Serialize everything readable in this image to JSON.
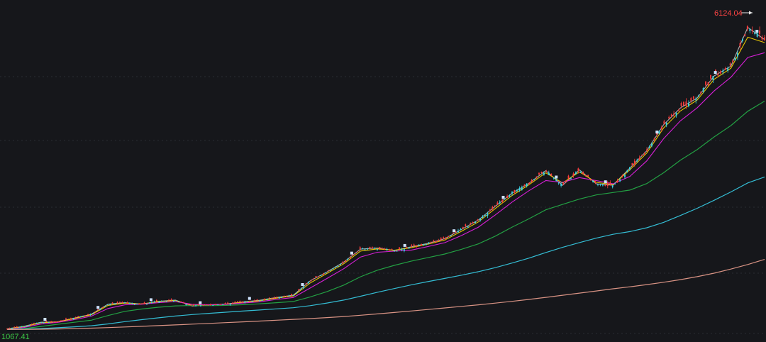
{
  "chart_data": {
    "type": "candlestick",
    "price_labels": {
      "high": "6124.04",
      "low": "1067.41"
    },
    "high_value": 6124.04,
    "low_value": 1067.41,
    "ylim": [
      1000,
      6250
    ],
    "grid": true,
    "colors": {
      "background": "#16171b",
      "grid": "#2b2d33",
      "up": "#ff3b3b",
      "down": "#35d6e8",
      "high_label": "#ff4444",
      "low_label": "#3cc846",
      "marker": "#cfe3ff"
    },
    "moving_averages": [
      {
        "color": "#ffffff",
        "values": [
          1078,
          1120,
          1188,
          1196,
          1258,
          1322,
          1492,
          1515,
          1492,
          1538,
          1560,
          1458,
          1478,
          1493,
          1528,
          1556,
          1602,
          1640,
          1880,
          2030,
          2195,
          2412,
          2430,
          2388,
          2450,
          2508,
          2587,
          2742,
          2900,
          3128,
          3350,
          3515,
          3725,
          3480,
          3740,
          3505,
          3482,
          3770,
          4058,
          4495,
          4775,
          4943,
          5310,
          5475,
          6124,
          5920
        ]
      },
      {
        "color": "#f2d000",
        "values": [
          1076,
          1114,
          1178,
          1194,
          1250,
          1312,
          1470,
          1508,
          1494,
          1532,
          1552,
          1470,
          1480,
          1491,
          1522,
          1548,
          1592,
          1628,
          1845,
          2005,
          2168,
          2380,
          2416,
          2393,
          2436,
          2496,
          2566,
          2712,
          2868,
          3092,
          3310,
          3490,
          3690,
          3520,
          3705,
          3530,
          3492,
          3740,
          4020,
          4440,
          4725,
          4910,
          5255,
          5440,
          5960,
          5870
        ]
      },
      {
        "color": "#e020e0",
        "values": [
          1072,
          1100,
          1158,
          1186,
          1232,
          1290,
          1418,
          1480,
          1490,
          1515,
          1535,
          1488,
          1480,
          1488,
          1510,
          1530,
          1570,
          1602,
          1760,
          1920,
          2085,
          2280,
          2360,
          2378,
          2395,
          2455,
          2520,
          2640,
          2780,
          2985,
          3200,
          3390,
          3560,
          3530,
          3610,
          3560,
          3505,
          3630,
          3890,
          4260,
          4560,
          4780,
          5060,
          5290,
          5620,
          5700
        ]
      },
      {
        "color": "#24a846",
        "values": [
          1070,
          1082,
          1118,
          1155,
          1188,
          1222,
          1300,
          1370,
          1410,
          1440,
          1462,
          1468,
          1466,
          1470,
          1482,
          1497,
          1515,
          1536,
          1610,
          1700,
          1810,
          1950,
          2060,
          2140,
          2210,
          2270,
          2330,
          2410,
          2500,
          2630,
          2780,
          2920,
          3070,
          3160,
          3250,
          3320,
          3360,
          3400,
          3510,
          3690,
          3900,
          4080,
          4290,
          4480,
          4720,
          4890
        ]
      },
      {
        "color": "#36c6de",
        "values": [
          1067,
          1072,
          1082,
          1096,
          1112,
          1130,
          1160,
          1198,
          1232,
          1262,
          1292,
          1317,
          1337,
          1356,
          1375,
          1393,
          1412,
          1431,
          1466,
          1510,
          1560,
          1624,
          1690,
          1752,
          1812,
          1868,
          1922,
          1976,
          2034,
          2102,
          2180,
          2262,
          2355,
          2442,
          2522,
          2596,
          2660,
          2706,
          2770,
          2860,
          2975,
          3096,
          3230,
          3370,
          3520,
          3620
        ]
      },
      {
        "color": "#e49a8a",
        "values": [
          1067,
          1068,
          1071,
          1076,
          1082,
          1089,
          1098,
          1109,
          1120,
          1132,
          1144,
          1157,
          1169,
          1182,
          1195,
          1208,
          1222,
          1236,
          1250,
          1266,
          1284,
          1305,
          1328,
          1352,
          1377,
          1402,
          1428,
          1454,
          1480,
          1508,
          1538,
          1570,
          1604,
          1640,
          1676,
          1712,
          1748,
          1782,
          1818,
          1858,
          1902,
          1952,
          2010,
          2078,
          2154,
          2240
        ]
      }
    ]
  }
}
